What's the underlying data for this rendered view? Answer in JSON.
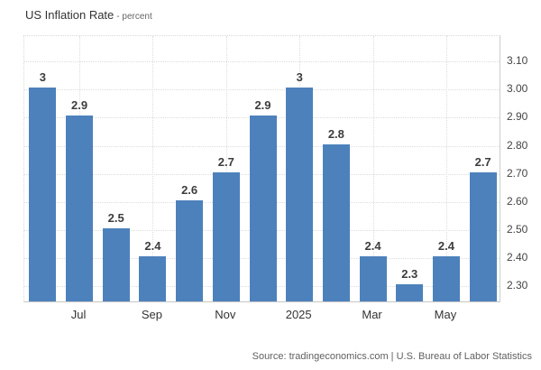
{
  "title": {
    "main": "US Inflation Rate",
    "suffix": "- percent"
  },
  "source": "Source: tradingeconomics.com | U.S. Bureau of Labor Statistics",
  "colors": {
    "bar": "#4d81bc",
    "grid": "#dcdcdc",
    "axis_line": "#c6c6c6",
    "bar_label": "#3d3d3d",
    "y_tick": "#444444",
    "x_tick": "#333333",
    "title": "#333333",
    "source": "#5f5f5f"
  },
  "chart_data": {
    "type": "bar",
    "title": "US Inflation Rate - percent",
    "xlabel": "",
    "ylabel": "percent",
    "categories": [
      "",
      "Jul",
      "",
      "Sep",
      "",
      "Nov",
      "",
      "2025",
      "",
      "Mar",
      "",
      "May",
      ""
    ],
    "values": [
      3,
      2.9,
      2.5,
      2.4,
      2.6,
      2.7,
      2.9,
      3,
      2.8,
      2.4,
      2.3,
      2.4,
      2.7
    ],
    "bar_labels": [
      "3",
      "2.9",
      "2.5",
      "2.4",
      "2.6",
      "2.7",
      "2.9",
      "3",
      "2.8",
      "2.4",
      "2.3",
      "2.4",
      "2.7"
    ],
    "y_ticks": [
      "3.10",
      "3.00",
      "2.90",
      "2.80",
      "2.70",
      "2.60",
      "2.50",
      "2.40",
      "2.30"
    ],
    "y_tick_values": [
      3.1,
      3.0,
      2.9,
      2.8,
      2.7,
      2.6,
      2.5,
      2.4,
      2.3
    ],
    "ylim": [
      2.24,
      3.19
    ],
    "grid": true,
    "legend": false,
    "bar_color": "#4d81bc"
  }
}
